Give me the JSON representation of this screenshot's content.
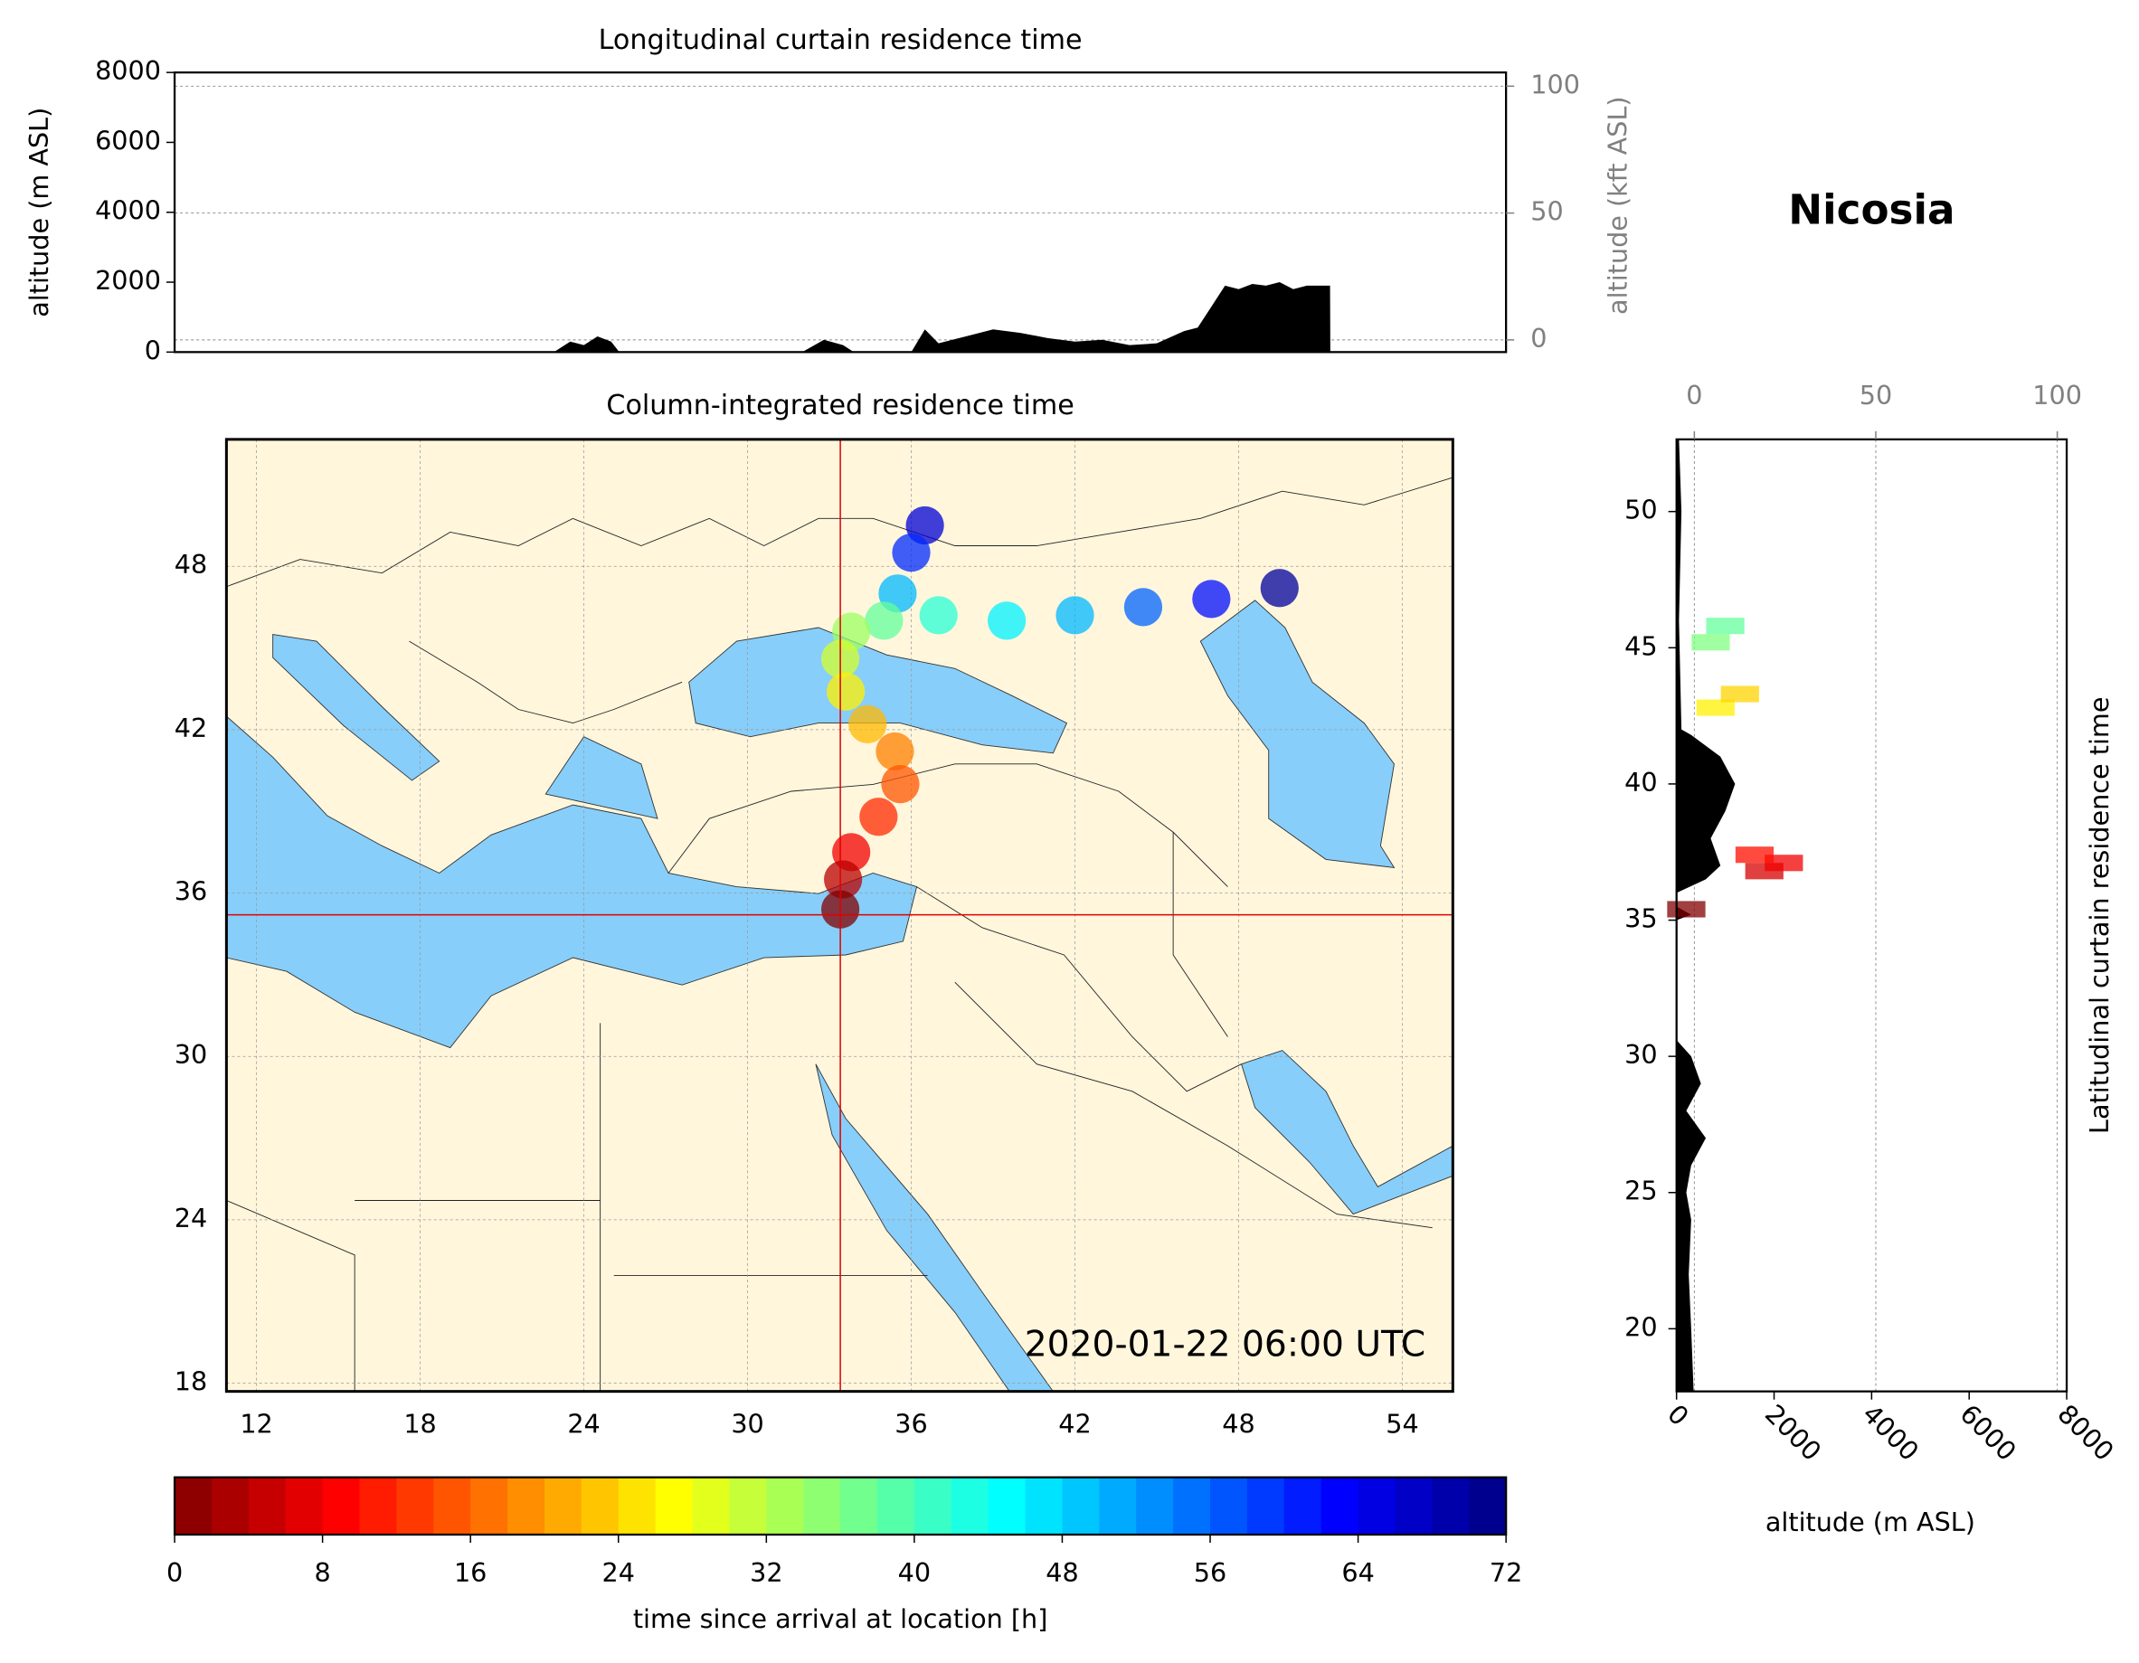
{
  "title": "Nicosia",
  "chart_data": [
    {
      "type": "area",
      "title": "Longitudinal curtain residence time",
      "y_label": "altitude (m ASL)",
      "y2_label": "altitude (kft ASL)",
      "x": [
        22.9,
        23.5,
        24.0,
        24.5,
        25.0,
        25.3,
        32.0,
        32.8,
        33.5,
        33.9,
        36.0,
        36.5,
        37.0,
        38.0,
        39.0,
        40.0,
        41.0,
        42.0,
        43.0,
        44.0,
        45.0,
        46.0,
        46.5,
        47.0,
        47.5,
        48.0,
        48.5,
        49.0,
        49.5,
        50.0,
        50.5,
        51.0,
        51.35,
        51.36
      ],
      "values": [
        0,
        300,
        200,
        450,
        300,
        0,
        0,
        350,
        200,
        0,
        0,
        650,
        250,
        450,
        650,
        550,
        400,
        300,
        350,
        200,
        250,
        600,
        700,
        1300,
        1900,
        1800,
        1950,
        1900,
        2000,
        1800,
        1900,
        1900,
        1900,
        0
      ],
      "color": "#000000",
      "xlim": [
        9.0,
        57.8
      ],
      "ylim": [
        0,
        8000
      ],
      "yticks": [
        0,
        2000,
        4000,
        6000,
        8000
      ],
      "y2lim": [
        -4.8,
        105.4
      ],
      "y2ticks": [
        0,
        50,
        100
      ],
      "y2_color": "#808080",
      "grid": true
    },
    {
      "type": "map",
      "title": "Column-integrated residence time",
      "annotation": "2020-01-22 06:00 UTC",
      "xlim": [
        10.9,
        55.85
      ],
      "ylim": [
        17.7,
        52.66
      ],
      "xticks": [
        12,
        18,
        24,
        30,
        36,
        42,
        48,
        54
      ],
      "yticks": [
        18,
        24,
        30,
        36,
        42,
        48
      ],
      "grid": true,
      "location": {
        "lon": 33.4,
        "lat": 35.2
      },
      "crosshair_color": "#e00000",
      "plume": {
        "lon": [
          33.4,
          33.5,
          33.8,
          34.8,
          35.6,
          35.4,
          34.4,
          33.6,
          33.4,
          33.8,
          35.0,
          37.0,
          39.5,
          42.0,
          44.5,
          47.0,
          49.5,
          35.5,
          36.0,
          36.5
        ],
        "lat": [
          35.4,
          36.5,
          37.5,
          38.8,
          40.0,
          41.2,
          42.2,
          43.4,
          44.6,
          45.6,
          46.0,
          46.2,
          46.0,
          46.2,
          46.5,
          46.8,
          47.2,
          47.0,
          48.5,
          49.5
        ],
        "hours": [
          0,
          4,
          8,
          12,
          15,
          18,
          22,
          26,
          30,
          34,
          38,
          42,
          46,
          50,
          56,
          62,
          70,
          50,
          60,
          66
        ]
      }
    },
    {
      "type": "colorbar",
      "label": "time since arrival at location [h]",
      "colormap": "jet_r",
      "xlim": [
        0,
        72
      ],
      "xticks": [
        0,
        8,
        16,
        24,
        32,
        40,
        48,
        56,
        64,
        72
      ]
    },
    {
      "type": "profile",
      "y_label": "Latitudinal curtain residence time",
      "x_label": "altitude (m ASL)",
      "y": [
        17.7,
        20,
        22,
        24,
        25,
        26,
        27,
        28,
        29,
        30,
        30.6,
        35,
        35.2,
        35.5,
        36,
        36.5,
        37,
        38,
        39,
        40,
        41,
        41.8,
        42,
        46,
        50,
        52.65
      ],
      "values": [
        350,
        300,
        250,
        300,
        200,
        300,
        600,
        200,
        500,
        300,
        0,
        0,
        300,
        0,
        0,
        600,
        900,
        700,
        1000,
        1200,
        900,
        300,
        100,
        50,
        100,
        50
      ],
      "color": "#000000",
      "xlim": [
        0,
        8000
      ],
      "xticks": [
        0,
        2000,
        4000,
        6000,
        8000
      ],
      "x2lim": [
        -4.9,
        102.6
      ],
      "x2ticks": [
        0,
        50,
        100
      ],
      "x2_color": "#808080",
      "grid": true,
      "ylim": [
        17.7,
        52.65
      ],
      "yticks": [
        20,
        25,
        30,
        35,
        40,
        45,
        50
      ],
      "plume": {
        "lat": [
          35.4,
          36.8,
          37.1,
          37.4,
          42.8,
          43.3,
          45.2,
          45.8
        ],
        "alt": [
          200,
          1800,
          2200,
          1600,
          800,
          1300,
          700,
          1000
        ],
        "hours": [
          0,
          6,
          8,
          10,
          26,
          24,
          36,
          38
        ]
      }
    }
  ]
}
